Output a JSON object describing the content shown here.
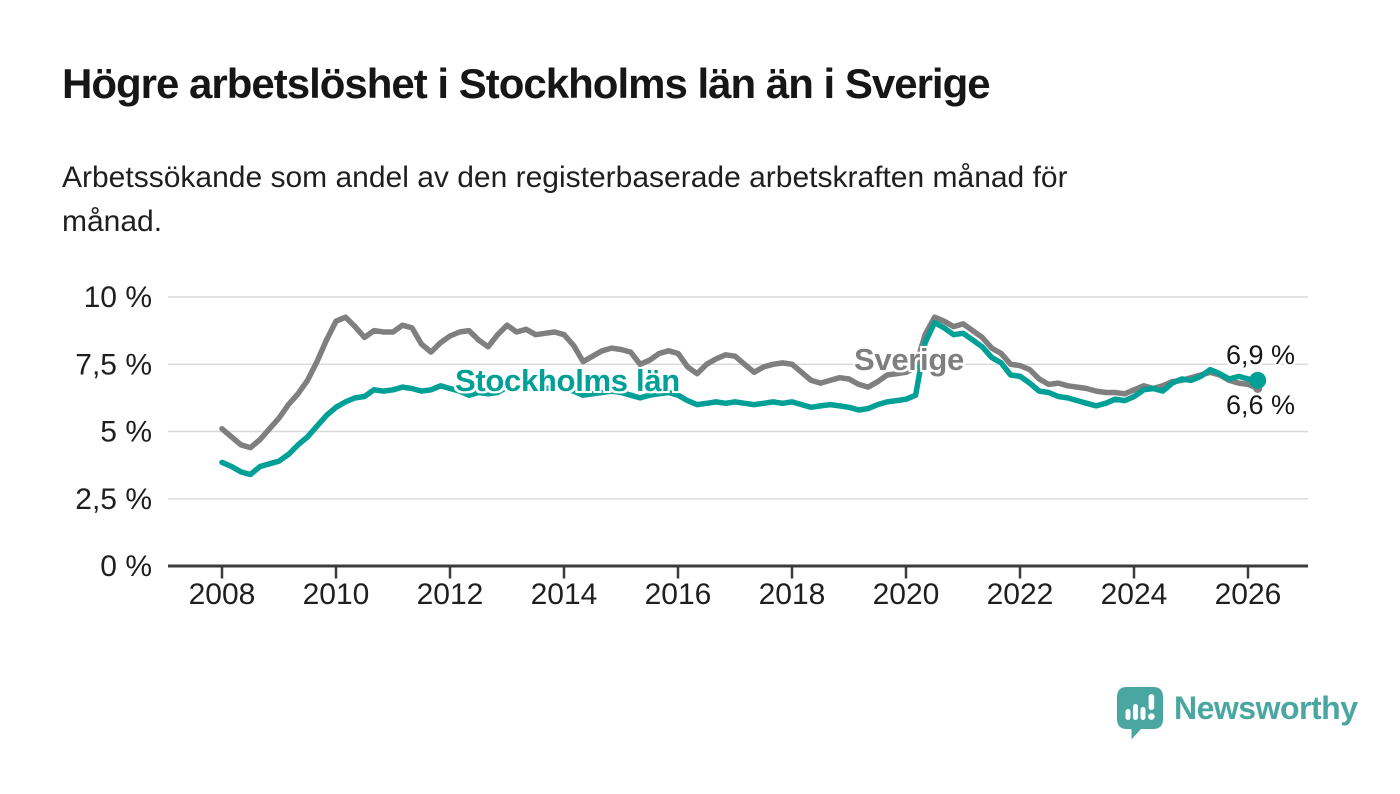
{
  "title": "Högre arbetslöshet i Stockholms län än i Sverige",
  "subtitle": "Arbetssökande som andel av den registerbaserade arbetskraften månad för månad.",
  "chart_data": {
    "type": "line",
    "title": "Högre arbetslöshet i Stockholms län än i Sverige",
    "xlabel": "",
    "ylabel": "Arbetssökande som andel av den registerbaserade arbetskraften",
    "grid": "horizontal",
    "legend_position": "inline-labels",
    "ylim": [
      0,
      10
    ],
    "x_start": 2008.0,
    "x_step": 0.1667,
    "x_ticks": [
      {
        "value": 2008,
        "label": "2008"
      },
      {
        "value": 2010,
        "label": "2010"
      },
      {
        "value": 2012,
        "label": "2012"
      },
      {
        "value": 2014,
        "label": "2014"
      },
      {
        "value": 2016,
        "label": "2016"
      },
      {
        "value": 2018,
        "label": "2018"
      },
      {
        "value": 2020,
        "label": "2020"
      },
      {
        "value": 2022,
        "label": "2022"
      },
      {
        "value": 2024,
        "label": "2024"
      },
      {
        "value": 2026,
        "label": "2026"
      }
    ],
    "y_ticks": [
      {
        "value": 10,
        "label": "10 %"
      },
      {
        "value": 7.5,
        "label": "7,5 %"
      },
      {
        "value": 5,
        "label": "5 %"
      },
      {
        "value": 2.5,
        "label": "2,5 %"
      },
      {
        "value": 0,
        "label": "0 %"
      }
    ],
    "series": [
      {
        "name": "Sverige",
        "color": "#7f7f7f",
        "end_label": "6,6 %",
        "end_value": 6.6,
        "end_dot": false,
        "values": [
          5.1,
          4.8,
          4.5,
          4.4,
          4.7,
          5.1,
          5.5,
          6.0,
          6.4,
          6.9,
          7.6,
          8.4,
          9.1,
          9.25,
          8.9,
          8.5,
          8.75,
          8.7,
          8.7,
          8.95,
          8.85,
          8.25,
          7.95,
          8.3,
          8.55,
          8.7,
          8.75,
          8.4,
          8.15,
          8.6,
          8.95,
          8.7,
          8.8,
          8.6,
          8.65,
          8.7,
          8.6,
          8.2,
          7.6,
          7.8,
          8.0,
          8.1,
          8.05,
          7.95,
          7.5,
          7.65,
          7.9,
          8.0,
          7.9,
          7.4,
          7.15,
          7.5,
          7.7,
          7.85,
          7.8,
          7.5,
          7.2,
          7.4,
          7.5,
          7.55,
          7.5,
          7.2,
          6.9,
          6.8,
          6.9,
          7.0,
          6.95,
          6.75,
          6.65,
          6.85,
          7.1,
          7.15,
          7.2,
          7.4,
          8.6,
          9.25,
          9.1,
          8.9,
          9.0,
          8.75,
          8.5,
          8.1,
          7.9,
          7.5,
          7.45,
          7.3,
          6.95,
          6.75,
          6.8,
          6.7,
          6.65,
          6.6,
          6.5,
          6.45,
          6.45,
          6.4,
          6.55,
          6.7,
          6.6,
          6.7,
          6.85,
          6.9,
          7.0,
          7.1,
          7.2,
          7.1,
          6.9,
          6.8,
          6.75,
          6.6
        ]
      },
      {
        "name": "Stockholms län",
        "color": "#00a096",
        "end_label": "6,9 %",
        "end_value": 6.9,
        "end_dot": true,
        "values": [
          3.85,
          3.7,
          3.5,
          3.4,
          3.7,
          3.8,
          3.9,
          4.15,
          4.5,
          4.8,
          5.2,
          5.6,
          5.9,
          6.1,
          6.25,
          6.3,
          6.55,
          6.5,
          6.55,
          6.65,
          6.6,
          6.5,
          6.55,
          6.7,
          6.6,
          6.5,
          6.35,
          6.45,
          6.4,
          6.45,
          6.65,
          6.6,
          6.65,
          6.55,
          6.6,
          6.65,
          6.6,
          6.5,
          6.35,
          6.4,
          6.45,
          6.5,
          6.45,
          6.35,
          6.25,
          6.35,
          6.4,
          6.45,
          6.35,
          6.15,
          6.0,
          6.05,
          6.1,
          6.05,
          6.1,
          6.05,
          6.0,
          6.05,
          6.1,
          6.05,
          6.1,
          6.0,
          5.9,
          5.95,
          6.0,
          5.95,
          5.9,
          5.8,
          5.85,
          6.0,
          6.1,
          6.15,
          6.2,
          6.35,
          8.3,
          9.05,
          8.85,
          8.6,
          8.65,
          8.4,
          8.15,
          7.75,
          7.55,
          7.1,
          7.05,
          6.8,
          6.5,
          6.45,
          6.3,
          6.25,
          6.15,
          6.05,
          5.95,
          6.05,
          6.2,
          6.15,
          6.3,
          6.55,
          6.6,
          6.5,
          6.8,
          6.95,
          6.9,
          7.05,
          7.3,
          7.15,
          6.95,
          7.05,
          6.95,
          6.9
        ]
      }
    ],
    "colors": {
      "grid": "#d8d8d8",
      "axis": "#3b3b3b",
      "tick_text": "#1f1f1f"
    }
  },
  "logo": {
    "text": "Newsworthy",
    "color": "#4aa6a1"
  }
}
